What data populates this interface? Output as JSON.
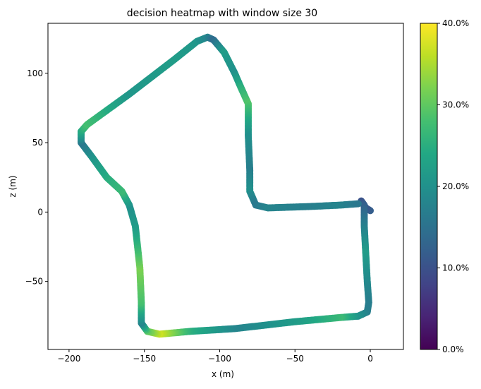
{
  "chart_data": {
    "type": "scatter",
    "title": "decision heatmap with window size 30",
    "xlabel": "x (m)",
    "ylabel": "z (m)",
    "xlim": [
      -214,
      22
    ],
    "ylim": [
      -99,
      136
    ],
    "xticks": [
      -200,
      -150,
      -100,
      -50,
      0
    ],
    "yticks": [
      -50,
      0,
      50,
      100
    ],
    "xtick_labels": [
      "−200",
      "−150",
      "−100",
      "−50",
      "0"
    ],
    "ytick_labels": [
      "−50",
      "0",
      "50",
      "100"
    ],
    "grid": false,
    "colormap": "viridis",
    "colorbar": {
      "min": 0,
      "max": 0.4,
      "ticks": [
        0,
        0.1,
        0.2,
        0.3,
        0.4
      ],
      "tick_labels": [
        "0.0%",
        "10.0%",
        "20.0%",
        "30.0%",
        "40.0%"
      ]
    },
    "trajectory": [
      {
        "x": 0,
        "z": 1,
        "v": 0.12
      },
      {
        "x": -3,
        "z": 3,
        "v": 0.11
      },
      {
        "x": -6,
        "z": 8,
        "v": 0.1
      },
      {
        "x": -4,
        "z": 5,
        "v": 0.12
      },
      {
        "x": -4,
        "z": -10,
        "v": 0.17
      },
      {
        "x": -3,
        "z": -30,
        "v": 0.22
      },
      {
        "x": -2,
        "z": -50,
        "v": 0.19
      },
      {
        "x": -1,
        "z": -65,
        "v": 0.17
      },
      {
        "x": -2,
        "z": -72,
        "v": 0.17
      },
      {
        "x": -8,
        "z": -75,
        "v": 0.2
      },
      {
        "x": -20,
        "z": -76,
        "v": 0.27
      },
      {
        "x": -50,
        "z": -79,
        "v": 0.22
      },
      {
        "x": -90,
        "z": -84,
        "v": 0.18
      },
      {
        "x": -120,
        "z": -86,
        "v": 0.25
      },
      {
        "x": -140,
        "z": -88,
        "v": 0.37
      },
      {
        "x": -148,
        "z": -86,
        "v": 0.3
      },
      {
        "x": -152,
        "z": -80,
        "v": 0.18
      },
      {
        "x": -152,
        "z": -65,
        "v": 0.28
      },
      {
        "x": -153,
        "z": -40,
        "v": 0.32
      },
      {
        "x": -156,
        "z": -10,
        "v": 0.22
      },
      {
        "x": -160,
        "z": 5,
        "v": 0.2
      },
      {
        "x": -165,
        "z": 15,
        "v": 0.27
      },
      {
        "x": -175,
        "z": 25,
        "v": 0.25
      },
      {
        "x": -185,
        "z": 40,
        "v": 0.21
      },
      {
        "x": -192,
        "z": 50,
        "v": 0.16
      },
      {
        "x": -192,
        "z": 58,
        "v": 0.24
      },
      {
        "x": -188,
        "z": 63,
        "v": 0.28
      },
      {
        "x": -160,
        "z": 85,
        "v": 0.21
      },
      {
        "x": -130,
        "z": 110,
        "v": 0.22
      },
      {
        "x": -115,
        "z": 123,
        "v": 0.21
      },
      {
        "x": -108,
        "z": 126,
        "v": 0.18
      },
      {
        "x": -104,
        "z": 124,
        "v": 0.14
      },
      {
        "x": -97,
        "z": 115,
        "v": 0.22
      },
      {
        "x": -90,
        "z": 100,
        "v": 0.2
      },
      {
        "x": -86,
        "z": 90,
        "v": 0.25
      },
      {
        "x": -81,
        "z": 78,
        "v": 0.29
      },
      {
        "x": -81,
        "z": 55,
        "v": 0.2
      },
      {
        "x": -80,
        "z": 30,
        "v": 0.17
      },
      {
        "x": -80,
        "z": 15,
        "v": 0.2
      },
      {
        "x": -76,
        "z": 5,
        "v": 0.16
      },
      {
        "x": -68,
        "z": 3,
        "v": 0.18
      },
      {
        "x": -40,
        "z": 4,
        "v": 0.17
      },
      {
        "x": -20,
        "z": 5,
        "v": 0.18
      },
      {
        "x": -8,
        "z": 6,
        "v": 0.16
      }
    ]
  }
}
